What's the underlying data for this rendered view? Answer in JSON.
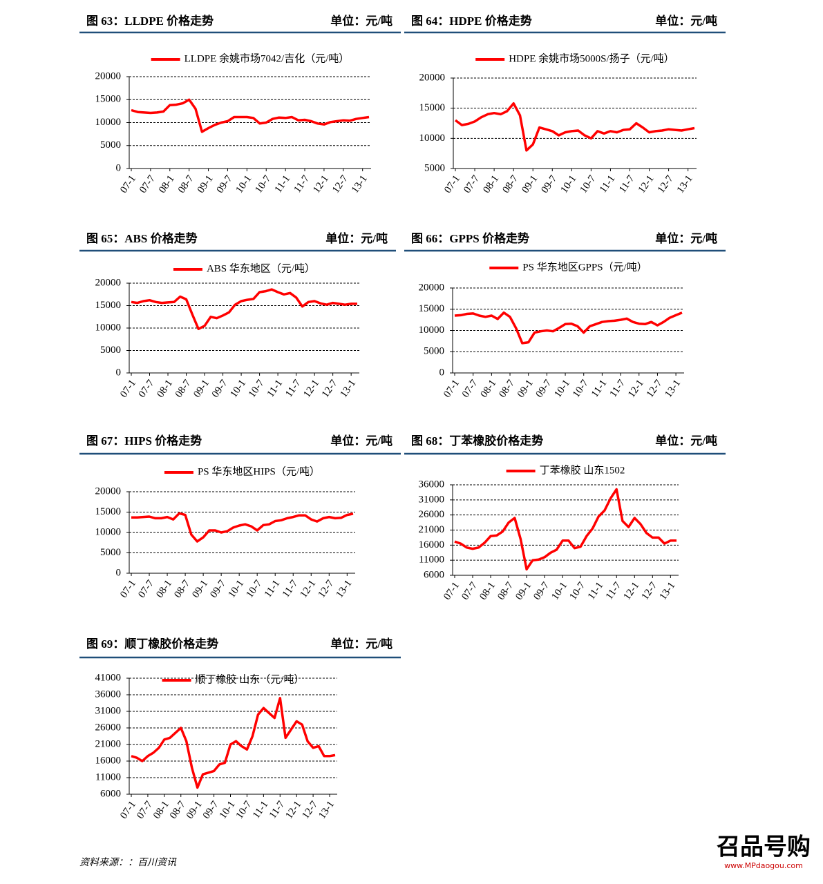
{
  "chart_data": [
    {
      "type": "line",
      "title": "图 63：LLDPE 价格走势",
      "unit": "单位：元/吨",
      "categories": [
        "07-1",
        null,
        null,
        "07-7",
        null,
        null,
        "08-1",
        null,
        null,
        "08-7",
        null,
        null,
        "09-1",
        null,
        null,
        "09-7",
        null,
        null,
        "10-1",
        null,
        null,
        "10-7",
        null,
        null,
        "11-1",
        null,
        null,
        "11-7",
        null,
        null,
        "12-1",
        null,
        null,
        "12-7",
        null,
        null,
        "13-1",
        null
      ],
      "series": [
        {
          "name": "LLDPE 余姚市场7042/吉化（元/吨）",
          "color": "#ff0000",
          "values": [
            12700,
            12300,
            12200,
            12100,
            12200,
            12400,
            13800,
            13900,
            14200,
            15000,
            13000,
            8000,
            8800,
            9500,
            10000,
            10300,
            11200,
            11200,
            11200,
            11000,
            9800,
            10000,
            10800,
            11100,
            11000,
            11200,
            10500,
            10600,
            10300,
            9800,
            9600,
            10100,
            10300,
            10500,
            10400,
            10800,
            11000,
            11200
          ]
        }
      ],
      "ylim": [
        0,
        20000
      ],
      "yticks": [
        0,
        5000,
        10000,
        15000,
        20000
      ],
      "grid": true
    },
    {
      "type": "line",
      "title": "图 64：HDPE 价格走势",
      "unit": "单位：元/吨",
      "categories": [
        "07-1",
        null,
        null,
        "07-7",
        null,
        null,
        "08-1",
        null,
        null,
        "08-7",
        null,
        null,
        "09-1",
        null,
        null,
        "09-7",
        null,
        null,
        "10-1",
        null,
        null,
        "10-7",
        null,
        null,
        "11-1",
        null,
        null,
        "11-7",
        null,
        null,
        "12-1",
        null,
        null,
        "12-7",
        null,
        null,
        "13-1",
        null
      ],
      "series": [
        {
          "name": "HDPE 余姚市场5000S/扬子（元/吨）",
          "color": "#ff0000",
          "values": [
            13000,
            12200,
            12400,
            12800,
            13500,
            14000,
            14200,
            14000,
            14500,
            15800,
            13800,
            8000,
            9000,
            11800,
            11500,
            11200,
            10500,
            11000,
            11200,
            11300,
            10500,
            10000,
            11200,
            10800,
            11200,
            11000,
            11400,
            11500,
            12500,
            11800,
            11000,
            11200,
            11300,
            11500,
            11400,
            11300,
            11500,
            11700
          ]
        }
      ],
      "ylim": [
        5000,
        20000
      ],
      "yticks": [
        5000,
        10000,
        15000,
        20000
      ],
      "grid": true
    },
    {
      "type": "line",
      "title": "图 65：ABS 价格走势",
      "unit": "单位：元/吨",
      "categories": [
        "07-1",
        null,
        null,
        "07-7",
        null,
        null,
        "08-1",
        null,
        null,
        "08-7",
        null,
        null,
        "09-1",
        null,
        null,
        "09-7",
        null,
        null,
        "10-1",
        null,
        null,
        "10-7",
        null,
        null,
        "11-1",
        null,
        null,
        "11-7",
        null,
        null,
        "12-1",
        null,
        null,
        "12-7",
        null,
        null,
        "13-1",
        null
      ],
      "series": [
        {
          "name": "ABS 华东地区（元/吨）",
          "color": "#ff0000",
          "values": [
            15800,
            15600,
            16000,
            16200,
            15800,
            15600,
            15700,
            15800,
            17000,
            16400,
            13000,
            9800,
            10500,
            12500,
            12200,
            12800,
            13500,
            15200,
            16000,
            16300,
            16500,
            18000,
            18200,
            18600,
            18000,
            17500,
            17800,
            16800,
            14800,
            15800,
            16000,
            15500,
            15200,
            15600,
            15400,
            15200,
            15400,
            15400
          ]
        }
      ],
      "ylim": [
        0,
        20000
      ],
      "yticks": [
        0,
        5000,
        10000,
        15000,
        20000
      ],
      "grid": true
    },
    {
      "type": "line",
      "title": "图 66：GPPS 价格走势",
      "unit": "单位：元/吨",
      "categories": [
        "07-1",
        null,
        null,
        "07-7",
        null,
        null,
        "08-1",
        null,
        null,
        "08-7",
        null,
        null,
        "09-1",
        null,
        null,
        "09-7",
        null,
        null,
        "10-1",
        null,
        null,
        "10-7",
        null,
        null,
        "11-1",
        null,
        null,
        "11-7",
        null,
        null,
        "12-1",
        null,
        null,
        "12-7",
        null,
        null,
        "13-1",
        null
      ],
      "series": [
        {
          "name": "PS 华东地区GPPS（元/吨）",
          "color": "#ff0000",
          "values": [
            13500,
            13600,
            13900,
            14000,
            13500,
            13200,
            13500,
            12700,
            14200,
            13200,
            10500,
            7000,
            7200,
            9500,
            9800,
            10000,
            9800,
            10600,
            11500,
            11600,
            11000,
            9500,
            11000,
            11500,
            12000,
            12200,
            12300,
            12500,
            12800,
            12000,
            11600,
            11500,
            12000,
            11200,
            12000,
            13000,
            13600,
            14200
          ]
        }
      ],
      "ylim": [
        0,
        20000
      ],
      "yticks": [
        0,
        5000,
        10000,
        15000,
        20000
      ],
      "grid": true
    },
    {
      "type": "line",
      "title": "图 67：HIPS 价格走势",
      "unit": "单位：元/吨",
      "categories": [
        "07-1",
        null,
        null,
        "07-7",
        null,
        null,
        "08-1",
        null,
        null,
        "08-7",
        null,
        null,
        "09-1",
        null,
        null,
        "09-7",
        null,
        null,
        "10-1",
        null,
        null,
        "10-7",
        null,
        null,
        "11-1",
        null,
        null,
        "11-7",
        null,
        null,
        "12-1",
        null,
        null,
        "12-7",
        null,
        null,
        "13-1",
        null
      ],
      "series": [
        {
          "name": "PS 华东地区HIPS（元/吨）",
          "color": "#ff0000",
          "values": [
            13700,
            13700,
            13800,
            13900,
            13500,
            13500,
            13800,
            13200,
            14700,
            14300,
            9500,
            7800,
            8800,
            10500,
            10500,
            10000,
            10300,
            11200,
            11700,
            12000,
            11500,
            10500,
            11800,
            12000,
            12800,
            13000,
            13500,
            13800,
            14200,
            14200,
            13200,
            12700,
            13500,
            13800,
            13500,
            13600,
            14300,
            14600
          ]
        }
      ],
      "ylim": [
        0,
        20000
      ],
      "yticks": [
        0,
        5000,
        10000,
        15000,
        20000
      ],
      "grid": true
    },
    {
      "type": "line",
      "title": "图 68：丁苯橡胶价格走势",
      "unit": "单位：元/吨",
      "categories": [
        "07-1",
        null,
        null,
        "07-7",
        null,
        null,
        "08-1",
        null,
        null,
        "08-7",
        null,
        null,
        "09-1",
        null,
        null,
        "09-7",
        null,
        null,
        "10-1",
        null,
        null,
        "10-7",
        null,
        null,
        "11-1",
        null,
        null,
        "11-7",
        null,
        null,
        "12-1",
        null,
        null,
        "12-7",
        null,
        null,
        "13-1",
        null
      ],
      "series": [
        {
          "name": "丁苯橡胶 山东1502",
          "color": "#ff0000",
          "values": [
            17200,
            16500,
            15200,
            14800,
            15200,
            16800,
            19000,
            19200,
            20500,
            23500,
            25000,
            18000,
            8000,
            11000,
            11200,
            12000,
            13500,
            14500,
            17500,
            17500,
            15000,
            15500,
            19000,
            21500,
            25500,
            27500,
            31500,
            34500,
            24000,
            22000,
            25000,
            23000,
            20000,
            18500,
            18500,
            16500,
            17500,
            17500
          ]
        }
      ],
      "ylim": [
        6000,
        36000
      ],
      "yticks": [
        6000,
        11000,
        16000,
        21000,
        26000,
        31000,
        36000
      ],
      "grid": true
    },
    {
      "type": "line",
      "title": "图 69：顺丁橡胶价格走势",
      "unit": "单位：元/吨",
      "categories": [
        "07-1",
        null,
        null,
        "07-7",
        null,
        null,
        "08-1",
        null,
        null,
        "08-7",
        null,
        null,
        "09-1",
        null,
        null,
        "09-7",
        null,
        null,
        "10-1",
        null,
        null,
        "10-7",
        null,
        null,
        "11-1",
        null,
        null,
        "11-7",
        null,
        null,
        "12-1",
        null,
        null,
        "12-7",
        null,
        null,
        "13-1",
        null
      ],
      "series": [
        {
          "name": "顺丁橡胶 山东（元/吨）",
          "color": "#ff0000",
          "values": [
            17500,
            17000,
            16000,
            17500,
            18500,
            20000,
            22500,
            23000,
            24500,
            26000,
            22000,
            14000,
            8000,
            12000,
            12500,
            13000,
            15000,
            15500,
            21000,
            22000,
            20500,
            19500,
            23500,
            30000,
            32000,
            30500,
            29000,
            35000,
            23000,
            25500,
            28000,
            27000,
            22000,
            20000,
            20500,
            17500,
            17500,
            17800
          ]
        }
      ],
      "ylim": [
        6000,
        41000
      ],
      "yticks": [
        6000,
        11000,
        16000,
        21000,
        26000,
        31000,
        36000,
        41000
      ],
      "grid": true
    }
  ],
  "source": "资料来源：：百川资讯",
  "watermark": {
    "logo": "召品号购",
    "url": "www.MPdaogou.com"
  }
}
